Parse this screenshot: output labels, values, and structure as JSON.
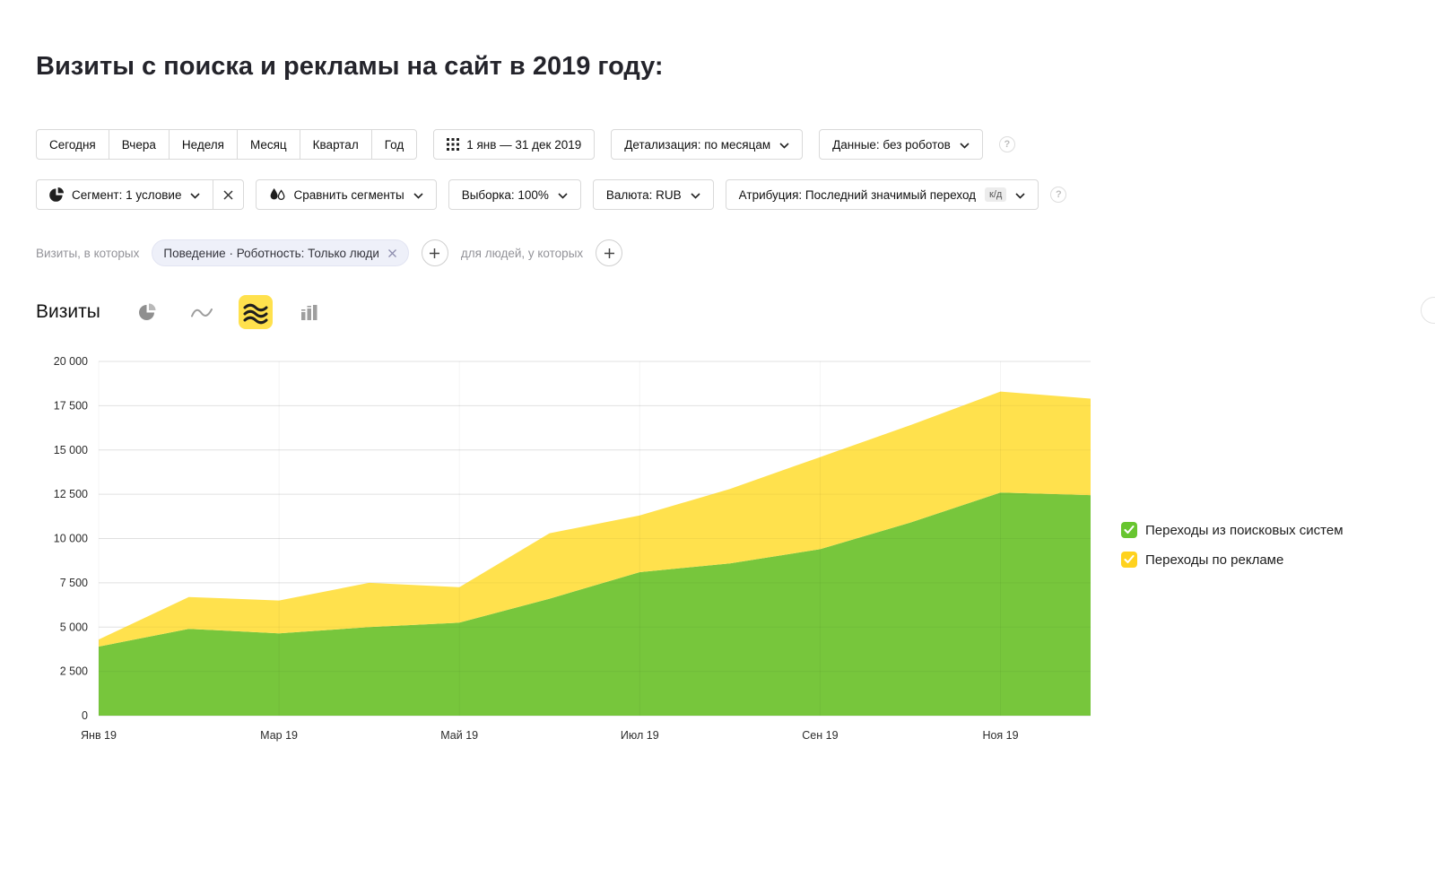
{
  "header": {
    "title": "Визиты с поиска и рекламы на сайт в 2019 году:"
  },
  "toolbar": {
    "periods": [
      "Сегодня",
      "Вчера",
      "Неделя",
      "Месяц",
      "Квартал",
      "Год"
    ],
    "date_range_label": "1 янв — 31 дек 2019",
    "detalization_label": "Детализация: по месяцам",
    "data_label": "Данные: без роботов",
    "segment_label": "Сегмент: 1 условие",
    "compare_label": "Сравнить сегменты",
    "sample_label": "Выборка: 100%",
    "currency_label": "Валюта: RUB",
    "attribution_label": "Атрибуция: Последний значимый переход",
    "attribution_badge": "к/д"
  },
  "filters": {
    "visits_in_which_label": "Визиты, в которых",
    "segment_chip_label": "Поведение · Роботность: Только люди",
    "for_people_label": "для людей, у которых"
  },
  "metric": {
    "title": "Визиты"
  },
  "icons": {
    "calendar_grid": "grid-of-dots calendar icon",
    "segment_pie": "pie segment icon",
    "compare_drops": "two drops compare icon",
    "chart_pie": "pie chart type icon",
    "chart_line": "line chart type icon",
    "chart_stacked_area": "stacked area chart type icon (selected)",
    "chart_columns": "column chart type icon",
    "checkbox_check": "white checkmark"
  },
  "chart_data": {
    "type": "area",
    "stacked": true,
    "title": "Визиты",
    "x": [
      "Янв 19",
      "Фев 19",
      "Мар 19",
      "Апр 19",
      "Май 19",
      "Июн 19",
      "Июл 19",
      "Авг 19",
      "Сен 19",
      "Окт 19",
      "Ноя 19",
      "Дек 19"
    ],
    "x_tick_step": 2,
    "series": [
      {
        "name": "Переходы из поисковых систем",
        "color": "#77c63c",
        "values": [
          3900,
          4900,
          4650,
          5000,
          5250,
          6600,
          8100,
          8600,
          9400,
          10900,
          12600,
          12450
        ]
      },
      {
        "name": "Переходы по рекламе",
        "color": "#ffe14d",
        "values": [
          400,
          1800,
          1850,
          2500,
          2000,
          3700,
          3200,
          4200,
          5200,
          5500,
          5700,
          5450
        ]
      }
    ],
    "ylim": [
      0,
      20000
    ],
    "yticks": [
      0,
      2500,
      5000,
      7500,
      10000,
      12500,
      15000,
      17500,
      20000
    ],
    "ytick_labels": [
      "0",
      "2 500",
      "5 000",
      "7 500",
      "10 000",
      "12 500",
      "15 000",
      "17 500",
      "20 000"
    ],
    "grid": true,
    "legend_position": "right",
    "legend_checkbox_colors": [
      "#67c52f",
      "#ffd21e"
    ]
  }
}
